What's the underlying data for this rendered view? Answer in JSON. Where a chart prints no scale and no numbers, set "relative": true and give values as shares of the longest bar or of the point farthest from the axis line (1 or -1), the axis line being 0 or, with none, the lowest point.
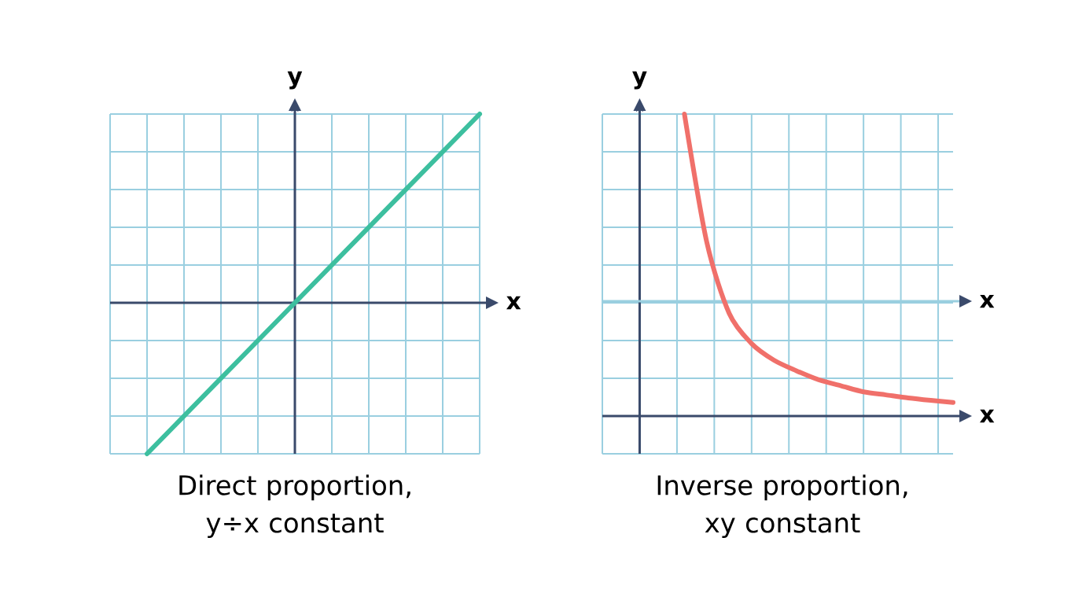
{
  "chart_data": [
    {
      "type": "line",
      "title": "Direct proportion, y÷x constant",
      "xlabel": "x",
      "ylabel": "y",
      "relative": true,
      "grid": true,
      "color": "#3dbf9f",
      "categories": [
        null,
        null,
        null,
        null,
        null,
        null,
        null,
        null,
        null,
        null
      ],
      "values": [
        -0.8,
        -0.6,
        -0.4,
        -0.2,
        0,
        0.2,
        0.4,
        0.6,
        0.8,
        1.0
      ],
      "ref_lines": [
        {
          "axis": "y",
          "value": 0,
          "color": "#3a4a6b"
        }
      ]
    },
    {
      "type": "line",
      "title": "Inverse proportion, xy constant",
      "xlabel": "x",
      "ylabel": "y",
      "relative": true,
      "grid": true,
      "color": "#f0706a",
      "categories": [
        null,
        null,
        null,
        null,
        null,
        null,
        null,
        null,
        null,
        null,
        null,
        null,
        null
      ],
      "values": [
        1.0,
        0.575,
        0.34,
        0.24,
        0.185,
        0.15,
        0.12,
        0.1,
        0.08,
        0.07,
        0.06,
        0.052,
        0.045
      ],
      "ref_lines": [
        {
          "axis": "y",
          "value": 0.38,
          "label": "x",
          "color": "#9acfe0"
        },
        {
          "axis": "y",
          "value": 0,
          "color": "#3a4a6b"
        }
      ]
    }
  ]
}
